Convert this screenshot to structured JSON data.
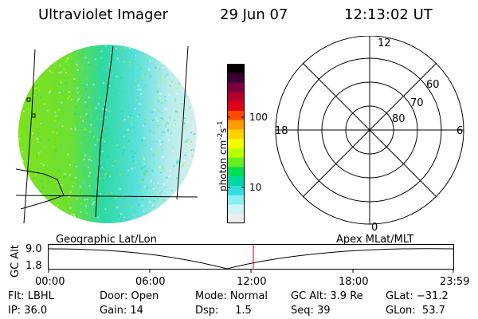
{
  "header": {
    "title": "Ultraviolet Imager",
    "date": "29 Jun 07",
    "time": "12:13:02 UT"
  },
  "colorbar": {
    "unit_label": "photon cm",
    "unit_exp1": "-2",
    "unit_mid": "s",
    "unit_exp2": "-1",
    "tick_high": "100",
    "tick_low": "10",
    "colors": [
      "#000000",
      "#3b0030",
      "#7a0040",
      "#b0002a",
      "#e0001a",
      "#ff4a00",
      "#ff9a00",
      "#ffd200",
      "#f0ff00",
      "#b8ff00",
      "#66ee22",
      "#00dd55",
      "#00d8a0",
      "#33dddd",
      "#88eeee",
      "#ccf4f4",
      "#eeeeee"
    ]
  },
  "polar": {
    "mlt_top": "12",
    "mlt_bottom": "0",
    "mlt_left": "18",
    "mlt_right": "6",
    "lat_60": "60",
    "lat_70": "70",
    "lat_80": "80"
  },
  "timeline": {
    "left_title": "Geographic Lat/Lon",
    "right_title": "Apex MLat/MLT",
    "y_axis_label": "GC Alt",
    "y_top": "9.0",
    "y_bottom": "1.8",
    "ticks": [
      "00:00",
      "06:00",
      "12:00",
      "18:00",
      "23:59"
    ]
  },
  "info": {
    "flt": "Flt: LBHL",
    "ip": "IP: 36.0",
    "door": "Door: Open",
    "gain": "Gain: 14",
    "mode": "Mode: Normal",
    "dsp": "Dsp:     1.5",
    "gcalt": "GC Alt: 3.9 Re",
    "seq": "Seq: 39",
    "glat": "GLat: −31.2",
    "glon": "GLon:  53.7"
  }
}
